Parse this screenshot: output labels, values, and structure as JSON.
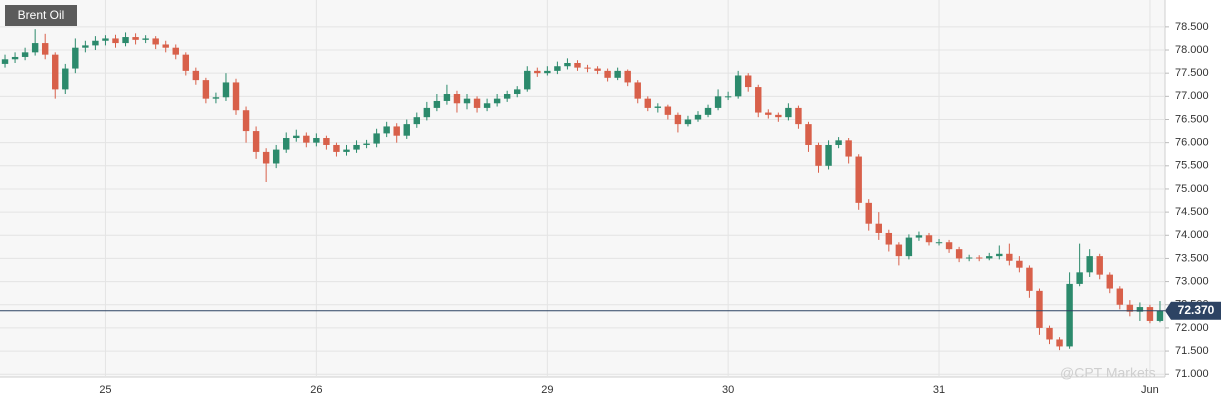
{
  "chart_data": {
    "type": "candlestick",
    "title": "Brent Oil",
    "watermark": "@CPT Markets",
    "categories": [
      null,
      null,
      null,
      null,
      null,
      null,
      null,
      null,
      null,
      null,
      "25",
      null,
      null,
      null,
      null,
      null,
      null,
      null,
      null,
      null,
      null,
      null,
      null,
      null,
      null,
      null,
      null,
      null,
      null,
      null,
      null,
      "26",
      null,
      null,
      null,
      null,
      null,
      null,
      null,
      null,
      null,
      null,
      null,
      null,
      null,
      null,
      null,
      null,
      null,
      null,
      null,
      null,
      null,
      null,
      "29",
      null,
      null,
      null,
      null,
      null,
      null,
      null,
      null,
      null,
      null,
      null,
      null,
      null,
      null,
      null,
      null,
      null,
      "30",
      null,
      null,
      null,
      null,
      null,
      null,
      null,
      null,
      null,
      null,
      null,
      null,
      null,
      null,
      null,
      null,
      null,
      null,
      null,
      null,
      "31",
      null,
      null,
      null,
      null,
      null,
      null,
      null,
      null,
      null,
      null,
      null,
      null,
      null,
      null,
      null,
      null,
      null,
      null,
      null,
      null,
      "Jun",
      null
    ],
    "open": [
      77.7,
      77.8,
      77.85,
      77.95,
      78.15,
      77.9,
      77.15,
      77.6,
      78.05,
      78.1,
      78.2,
      78.25,
      78.15,
      78.28,
      78.22,
      78.25,
      78.12,
      78.05,
      77.9,
      77.55,
      77.35,
      76.95,
      76.98,
      77.3,
      76.7,
      76.25,
      75.8,
      75.55,
      75.85,
      76.1,
      76.15,
      76.0,
      76.1,
      75.95,
      75.8,
      75.85,
      75.95,
      75.98,
      76.2,
      76.35,
      76.15,
      76.4,
      76.55,
      76.75,
      76.9,
      77.05,
      76.85,
      76.95,
      76.75,
      76.85,
      76.95,
      77.05,
      77.15,
      77.55,
      77.5,
      77.55,
      77.65,
      77.72,
      77.62,
      77.6,
      77.55,
      77.4,
      77.55,
      77.3,
      76.95,
      76.75,
      76.78,
      76.6,
      76.4,
      76.5,
      76.6,
      76.75,
      77.0,
      77.0,
      77.45,
      77.2,
      76.65,
      76.6,
      76.55,
      76.75,
      76.4,
      75.95,
      75.5,
      75.95,
      76.05,
      75.7,
      74.7,
      74.25,
      74.05,
      73.8,
      73.55,
      73.95,
      74.0,
      73.85,
      73.85,
      73.7,
      73.5,
      73.52,
      73.5,
      73.55,
      73.6,
      73.45,
      73.3,
      72.8,
      72.0,
      71.75,
      71.6,
      72.95,
      73.2,
      73.55,
      73.15,
      72.85,
      72.5,
      72.35,
      72.45,
      72.15
    ],
    "high": [
      77.9,
      77.95,
      78.05,
      78.45,
      78.35,
      77.95,
      77.7,
      78.25,
      78.2,
      78.3,
      78.32,
      78.33,
      78.38,
      78.36,
      78.32,
      78.3,
      78.2,
      78.12,
      77.95,
      77.62,
      77.4,
      77.08,
      77.5,
      77.38,
      76.78,
      76.35,
      75.88,
      75.95,
      76.22,
      76.28,
      76.22,
      76.2,
      76.15,
      76.0,
      75.95,
      76.05,
      76.06,
      76.3,
      76.45,
      76.42,
      76.5,
      76.65,
      76.88,
      77.05,
      77.25,
      77.12,
      77.05,
      77.0,
      76.95,
      77.05,
      77.12,
      77.22,
      77.65,
      77.62,
      77.65,
      77.75,
      77.82,
      77.78,
      77.68,
      77.65,
      77.6,
      77.62,
      77.58,
      77.35,
      77.0,
      76.85,
      76.82,
      76.65,
      76.58,
      76.68,
      76.82,
      77.15,
      77.1,
      77.55,
      77.5,
      77.25,
      76.72,
      76.65,
      76.85,
      76.8,
      76.45,
      76.0,
      76.05,
      76.12,
      76.1,
      75.75,
      74.78,
      74.5,
      74.12,
      73.85,
      74.02,
      74.08,
      74.05,
      73.92,
      73.9,
      73.75,
      73.58,
      73.57,
      73.62,
      73.78,
      73.82,
      73.55,
      73.35,
      72.85,
      72.05,
      71.8,
      73.2,
      73.82,
      73.7,
      73.6,
      73.2,
      72.9,
      72.6,
      72.55,
      72.5,
      72.58
    ],
    "low": [
      77.62,
      77.72,
      77.78,
      77.88,
      77.8,
      76.95,
      77.05,
      77.5,
      77.95,
      78.0,
      78.1,
      78.05,
      78.08,
      78.12,
      78.15,
      78.02,
      77.95,
      77.8,
      77.45,
      77.25,
      76.85,
      76.85,
      76.9,
      76.6,
      76.0,
      75.65,
      75.15,
      75.45,
      75.78,
      76.02,
      75.9,
      75.92,
      75.85,
      75.7,
      75.72,
      75.78,
      75.88,
      75.9,
      76.12,
      76.0,
      76.08,
      76.32,
      76.48,
      76.68,
      76.82,
      76.65,
      76.72,
      76.65,
      76.68,
      76.78,
      76.88,
      76.98,
      77.1,
      77.42,
      77.45,
      77.48,
      77.58,
      77.55,
      77.52,
      77.48,
      77.32,
      77.35,
      77.22,
      76.85,
      76.68,
      76.65,
      76.5,
      76.22,
      76.35,
      76.45,
      76.55,
      76.7,
      76.92,
      76.95,
      77.1,
      76.55,
      76.52,
      76.45,
      76.48,
      76.3,
      75.8,
      75.35,
      75.42,
      75.88,
      75.55,
      74.55,
      74.1,
      73.9,
      73.65,
      73.35,
      73.48,
      73.88,
      73.78,
      73.78,
      73.62,
      73.42,
      73.44,
      73.44,
      73.46,
      73.48,
      73.35,
      73.2,
      72.65,
      71.85,
      71.65,
      71.52,
      71.55,
      72.9,
      73.1,
      73.05,
      72.75,
      72.4,
      72.25,
      72.15,
      72.1,
      72.12
    ],
    "close": [
      77.8,
      77.85,
      77.95,
      78.15,
      77.9,
      77.15,
      77.6,
      78.05,
      78.1,
      78.2,
      78.25,
      78.15,
      78.28,
      78.22,
      78.25,
      78.12,
      78.05,
      77.9,
      77.55,
      77.35,
      76.95,
      76.98,
      77.3,
      76.7,
      76.25,
      75.8,
      75.55,
      75.85,
      76.1,
      76.15,
      76.0,
      76.1,
      75.95,
      75.8,
      75.85,
      75.95,
      75.98,
      76.2,
      76.35,
      76.15,
      76.4,
      76.55,
      76.75,
      76.9,
      77.05,
      76.85,
      76.95,
      76.75,
      76.85,
      76.95,
      77.05,
      77.15,
      77.55,
      77.5,
      77.55,
      77.65,
      77.72,
      77.62,
      77.6,
      77.55,
      77.4,
      77.55,
      77.3,
      76.95,
      76.75,
      76.78,
      76.6,
      76.4,
      76.5,
      76.6,
      76.75,
      77.0,
      77.0,
      77.45,
      77.2,
      76.65,
      76.6,
      76.55,
      76.75,
      76.4,
      75.95,
      75.5,
      75.95,
      76.05,
      75.7,
      74.7,
      74.25,
      74.05,
      73.8,
      73.55,
      73.95,
      74.0,
      73.85,
      73.85,
      73.7,
      73.5,
      73.52,
      73.5,
      73.55,
      73.6,
      73.45,
      73.3,
      72.8,
      72.0,
      71.75,
      71.6,
      72.95,
      73.2,
      73.55,
      73.15,
      72.85,
      72.5,
      72.35,
      72.45,
      72.15,
      72.37
    ],
    "up_color": "#2c8a6c",
    "down_color": "#d8604a",
    "ylim": [
      70.94,
      79.08
    ],
    "yticks": [
      {
        "value": 71,
        "label": "71.000"
      },
      {
        "value": 71.5,
        "label": "71.500"
      },
      {
        "value": 72,
        "label": "72.000"
      },
      {
        "value": 72.5,
        "label": "72.500"
      },
      {
        "value": 73,
        "label": "73.000"
      },
      {
        "value": 73.5,
        "label": "73.500"
      },
      {
        "value": 74,
        "label": "74.000"
      },
      {
        "value": 74.5,
        "label": "74.500"
      },
      {
        "value": 75,
        "label": "75.000"
      },
      {
        "value": 75.5,
        "label": "75.500"
      },
      {
        "value": 76,
        "label": "76.000"
      },
      {
        "value": 76.5,
        "label": "76.500"
      },
      {
        "value": 77,
        "label": "77.000"
      },
      {
        "value": 77.5,
        "label": "77.500"
      },
      {
        "value": 78,
        "label": "78.000"
      },
      {
        "value": 78.5,
        "label": "78.500"
      }
    ],
    "current_price": {
      "value": 72.37,
      "label": "72.370"
    },
    "grid": true
  }
}
